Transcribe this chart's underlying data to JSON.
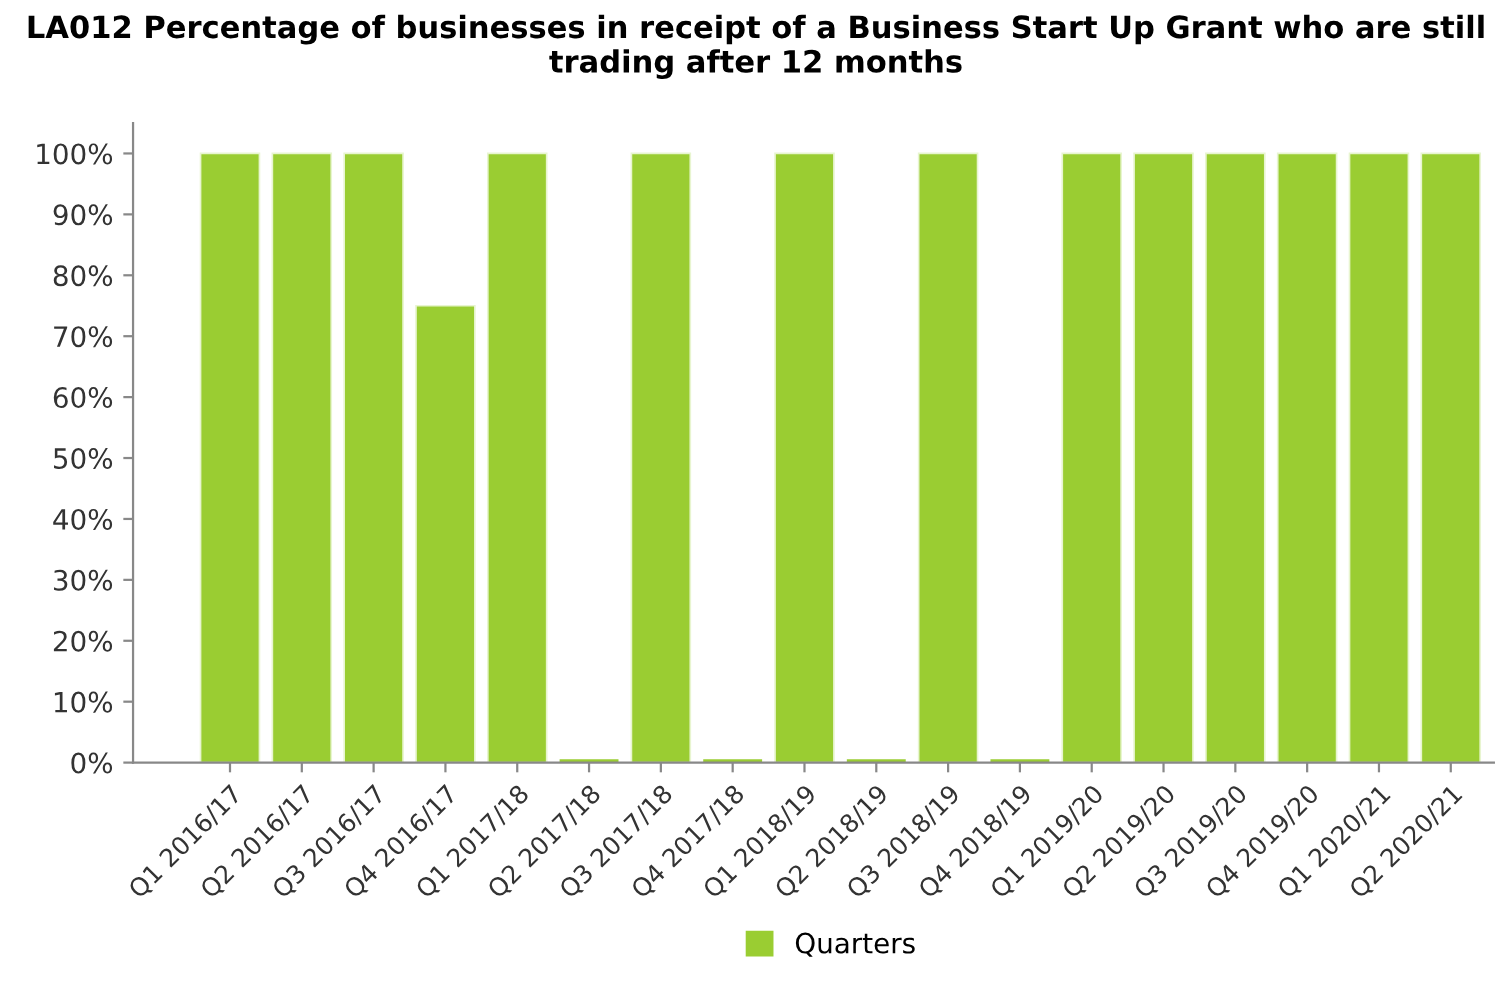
{
  "chart_data": {
    "type": "bar",
    "title": "LA012 Percentage of businesses in receipt of a Business Start Up Grant who are still trading after 12 months",
    "categories": [
      "Q1 2016/17",
      "Q2 2016/17",
      "Q3 2016/17",
      "Q4 2016/17",
      "Q1 2017/18",
      "Q2 2017/18",
      "Q3 2017/18",
      "Q4 2017/18",
      "Q1 2018/19",
      "Q2 2018/19",
      "Q3 2018/19",
      "Q4 2018/19",
      "Q1 2019/20",
      "Q2 2019/20",
      "Q3 2019/20",
      "Q4 2019/20",
      "Q1 2020/21",
      "Q2 2020/21"
    ],
    "series": [
      {
        "name": "Quarters",
        "color": "#9acd32",
        "values": [
          100,
          100,
          100,
          75,
          100,
          0,
          100,
          0,
          100,
          0,
          100,
          0,
          100,
          100,
          100,
          100,
          100,
          100
        ]
      }
    ],
    "ylim": [
      0,
      105
    ],
    "yticks": [
      {
        "value": 0,
        "label": "0%"
      },
      {
        "value": 10,
        "label": "10%"
      },
      {
        "value": 20,
        "label": "20%"
      },
      {
        "value": 30,
        "label": "30%"
      },
      {
        "value": 40,
        "label": "40%"
      },
      {
        "value": 50,
        "label": "50%"
      },
      {
        "value": 60,
        "label": "60%"
      },
      {
        "value": 70,
        "label": "70%"
      },
      {
        "value": 80,
        "label": "80%"
      },
      {
        "value": 90,
        "label": "90%"
      },
      {
        "value": 100,
        "label": "100%"
      }
    ],
    "legend": "bottom"
  }
}
